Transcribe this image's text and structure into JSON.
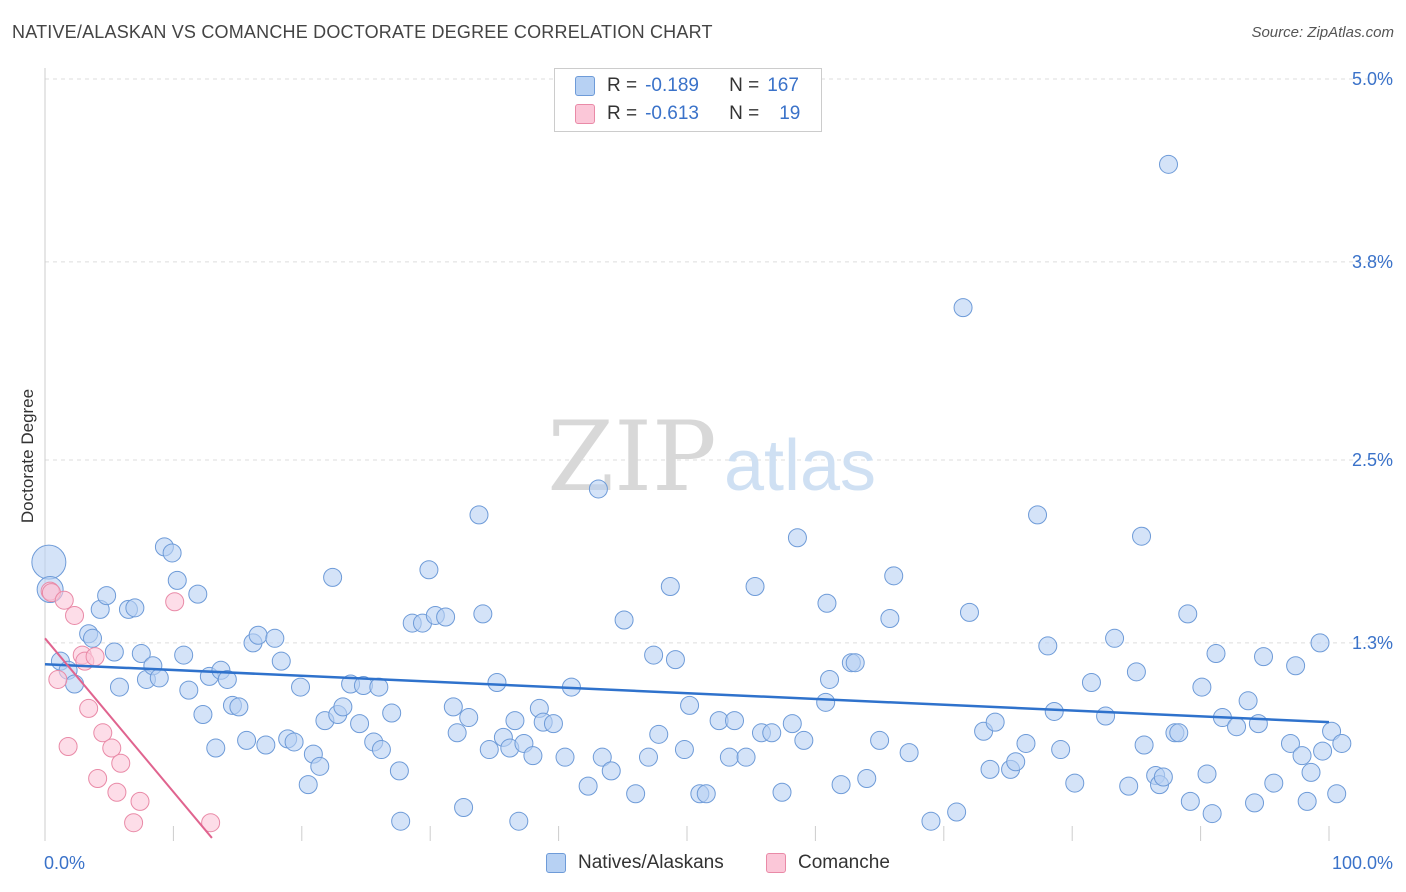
{
  "header": {
    "title": "NATIVE/ALASKAN VS COMANCHE DOCTORATE DEGREE CORRELATION CHART",
    "source": "Source: ZipAtlas.com"
  },
  "watermark": {
    "zip": "ZIP",
    "atlas": "atlas"
  },
  "legend": {
    "rows": [
      {
        "r_label": "R =",
        "r_value": "-0.189",
        "n_label": "N =",
        "n_value": "167"
      },
      {
        "r_label": "R =",
        "r_value": "-0.613",
        "n_label": "N =",
        "n_value": "19"
      }
    ]
  },
  "bottom_legend": {
    "series1": "Natives/Alaskans",
    "series2": "Comanche"
  },
  "colors": {
    "blue_fill": "#b7d1f3",
    "blue_stroke": "#6e9bd8",
    "blue_line": "#2f72cc",
    "pink_fill": "#fbc7d8",
    "pink_stroke": "#e98aa7",
    "pink_line": "#e0648f",
    "tick_label": "#3a72c9",
    "grid": "#dddddd"
  },
  "chart_data": {
    "type": "scatter",
    "title": "NATIVE/ALASKAN VS COMANCHE DOCTORATE DEGREE CORRELATION CHART",
    "xlabel": "",
    "ylabel": "Doctorate Degree",
    "xlim": [
      0,
      100
    ],
    "ylim": [
      0,
      5.0
    ],
    "x_tick_labels": [
      "0.0%",
      "100.0%"
    ],
    "y_ticks": [
      1.3,
      2.5,
      3.8,
      5.0
    ],
    "y_tick_labels": [
      "1.3%",
      "2.5%",
      "3.8%",
      "5.0%"
    ],
    "grid": true,
    "legend_position": "top-center",
    "series": [
      {
        "name": "Natives/Alaskans",
        "trend": {
          "x": [
            0,
            100
          ],
          "y": [
            1.16,
            0.78
          ]
        },
        "points": [
          [
            0.3,
            1.83,
            "L"
          ],
          [
            0.4,
            1.65,
            "M"
          ],
          [
            1.2,
            1.18
          ],
          [
            1.8,
            1.12
          ],
          [
            2.3,
            1.03
          ],
          [
            3.4,
            1.36
          ],
          [
            3.7,
            1.33
          ],
          [
            4.3,
            1.52
          ],
          [
            4.8,
            1.61
          ],
          [
            5.4,
            1.24
          ],
          [
            5.8,
            1.01
          ],
          [
            6.5,
            1.52
          ],
          [
            7.0,
            1.53
          ],
          [
            7.5,
            1.23
          ],
          [
            7.9,
            1.06
          ],
          [
            8.4,
            1.15
          ],
          [
            8.9,
            1.07
          ],
          [
            9.3,
            1.93
          ],
          [
            9.9,
            1.89
          ],
          [
            10.3,
            1.71
          ],
          [
            10.8,
            1.22
          ],
          [
            11.2,
            0.99
          ],
          [
            11.9,
            1.62
          ],
          [
            12.3,
            0.83
          ],
          [
            12.8,
            1.08
          ],
          [
            13.3,
            0.61
          ],
          [
            13.7,
            1.12
          ],
          [
            14.2,
            1.06
          ],
          [
            14.6,
            0.89
          ],
          [
            15.1,
            0.88
          ],
          [
            15.7,
            0.66
          ],
          [
            16.2,
            1.3
          ],
          [
            16.6,
            1.35
          ],
          [
            17.2,
            0.63
          ],
          [
            17.9,
            1.33
          ],
          [
            18.4,
            1.18
          ],
          [
            18.9,
            0.67
          ],
          [
            19.4,
            0.65
          ],
          [
            19.9,
            1.01
          ],
          [
            20.5,
            0.37
          ],
          [
            20.9,
            0.57
          ],
          [
            21.4,
            0.49
          ],
          [
            21.8,
            0.79
          ],
          [
            22.4,
            1.73
          ],
          [
            22.8,
            0.83
          ],
          [
            23.2,
            0.88
          ],
          [
            23.8,
            1.03
          ],
          [
            24.5,
            0.77
          ],
          [
            24.8,
            1.02
          ],
          [
            25.6,
            0.65
          ],
          [
            26.0,
            1.01
          ],
          [
            26.2,
            0.6
          ],
          [
            27.0,
            0.84
          ],
          [
            27.6,
            0.46
          ],
          [
            27.7,
            0.13
          ],
          [
            28.6,
            1.43
          ],
          [
            29.4,
            1.43
          ],
          [
            29.9,
            1.78
          ],
          [
            30.4,
            1.48
          ],
          [
            31.2,
            1.47
          ],
          [
            31.8,
            0.88
          ],
          [
            32.1,
            0.71
          ],
          [
            32.6,
            0.22
          ],
          [
            33.0,
            0.81
          ],
          [
            33.8,
            2.14
          ],
          [
            34.1,
            1.49
          ],
          [
            34.6,
            0.6
          ],
          [
            35.2,
            1.04
          ],
          [
            35.7,
            0.68
          ],
          [
            36.2,
            0.61
          ],
          [
            36.6,
            0.79
          ],
          [
            36.9,
            0.13
          ],
          [
            37.3,
            0.64
          ],
          [
            38.0,
            0.56
          ],
          [
            38.5,
            0.87
          ],
          [
            38.8,
            0.78
          ],
          [
            39.6,
            0.77
          ],
          [
            40.5,
            0.55
          ],
          [
            41.0,
            1.01
          ],
          [
            42.3,
            0.36
          ],
          [
            43.1,
            2.31
          ],
          [
            43.4,
            0.55
          ],
          [
            44.1,
            0.46
          ],
          [
            45.1,
            1.45
          ],
          [
            46.0,
            0.31
          ],
          [
            47.0,
            0.55
          ],
          [
            47.4,
            1.22
          ],
          [
            47.8,
            0.7
          ],
          [
            48.7,
            1.67
          ],
          [
            49.1,
            1.19
          ],
          [
            49.8,
            0.6
          ],
          [
            50.2,
            0.89
          ],
          [
            51.0,
            0.31
          ],
          [
            51.5,
            0.31
          ],
          [
            52.5,
            0.79
          ],
          [
            53.3,
            0.55
          ],
          [
            53.7,
            0.79
          ],
          [
            54.6,
            0.55
          ],
          [
            55.3,
            1.67
          ],
          [
            55.8,
            0.71
          ],
          [
            56.6,
            0.71
          ],
          [
            57.4,
            0.32
          ],
          [
            58.2,
            0.77
          ],
          [
            58.6,
            1.99
          ],
          [
            59.1,
            0.66
          ],
          [
            60.8,
            0.91
          ],
          [
            60.9,
            1.56
          ],
          [
            61.1,
            1.06
          ],
          [
            62.0,
            0.37
          ],
          [
            62.8,
            1.17
          ],
          [
            63.1,
            1.17
          ],
          [
            64.0,
            0.41
          ],
          [
            65.0,
            0.66
          ],
          [
            65.8,
            1.46
          ],
          [
            66.1,
            1.74
          ],
          [
            67.3,
            0.58
          ],
          [
            69.0,
            0.13
          ],
          [
            71.0,
            0.19
          ],
          [
            71.5,
            3.5
          ],
          [
            72.0,
            1.5
          ],
          [
            73.1,
            0.72
          ],
          [
            73.6,
            0.47
          ],
          [
            74.0,
            0.78
          ],
          [
            75.2,
            0.47
          ],
          [
            75.6,
            0.52
          ],
          [
            76.4,
            0.64
          ],
          [
            77.3,
            2.14
          ],
          [
            78.1,
            1.28
          ],
          [
            78.6,
            0.85
          ],
          [
            79.1,
            0.6
          ],
          [
            80.2,
            0.38
          ],
          [
            81.5,
            1.04
          ],
          [
            82.6,
            0.82
          ],
          [
            83.3,
            1.33
          ],
          [
            84.4,
            0.36
          ],
          [
            85.0,
            1.11
          ],
          [
            85.4,
            2.0
          ],
          [
            85.6,
            0.63
          ],
          [
            86.5,
            0.43
          ],
          [
            86.8,
            0.37
          ],
          [
            87.1,
            0.42
          ],
          [
            87.5,
            4.44
          ],
          [
            88.0,
            0.71
          ],
          [
            88.3,
            0.71
          ],
          [
            89.0,
            1.49
          ],
          [
            89.2,
            0.26
          ],
          [
            90.1,
            1.01
          ],
          [
            90.5,
            0.44
          ],
          [
            90.9,
            0.18
          ],
          [
            91.2,
            1.23
          ],
          [
            91.7,
            0.81
          ],
          [
            92.8,
            0.75
          ],
          [
            93.7,
            0.92
          ],
          [
            94.2,
            0.25
          ],
          [
            94.5,
            0.77
          ],
          [
            94.9,
            1.21
          ],
          [
            95.7,
            0.38
          ],
          [
            97.0,
            0.64
          ],
          [
            97.4,
            1.15
          ],
          [
            97.9,
            0.56
          ],
          [
            98.3,
            0.26
          ],
          [
            98.6,
            0.45
          ],
          [
            99.3,
            1.3
          ],
          [
            99.5,
            0.59
          ],
          [
            100.2,
            0.72
          ],
          [
            100.6,
            0.31
          ],
          [
            101.0,
            0.64
          ]
        ]
      },
      {
        "name": "Comanche",
        "trend": {
          "x": [
            0,
            13.0
          ],
          "y": [
            1.33,
            0.02
          ]
        },
        "points": [
          [
            0.4,
            1.64
          ],
          [
            0.5,
            1.63
          ],
          [
            1.0,
            1.06
          ],
          [
            1.5,
            1.58
          ],
          [
            1.8,
            0.62
          ],
          [
            2.3,
            1.48
          ],
          [
            2.9,
            1.22
          ],
          [
            3.1,
            1.18
          ],
          [
            3.4,
            0.87
          ],
          [
            3.9,
            1.21
          ],
          [
            4.1,
            0.41
          ],
          [
            4.5,
            0.71
          ],
          [
            5.2,
            0.61
          ],
          [
            5.6,
            0.32
          ],
          [
            5.9,
            0.51
          ],
          [
            6.9,
            0.12
          ],
          [
            7.4,
            0.26
          ],
          [
            10.1,
            1.57
          ],
          [
            12.9,
            0.12
          ]
        ]
      }
    ]
  }
}
